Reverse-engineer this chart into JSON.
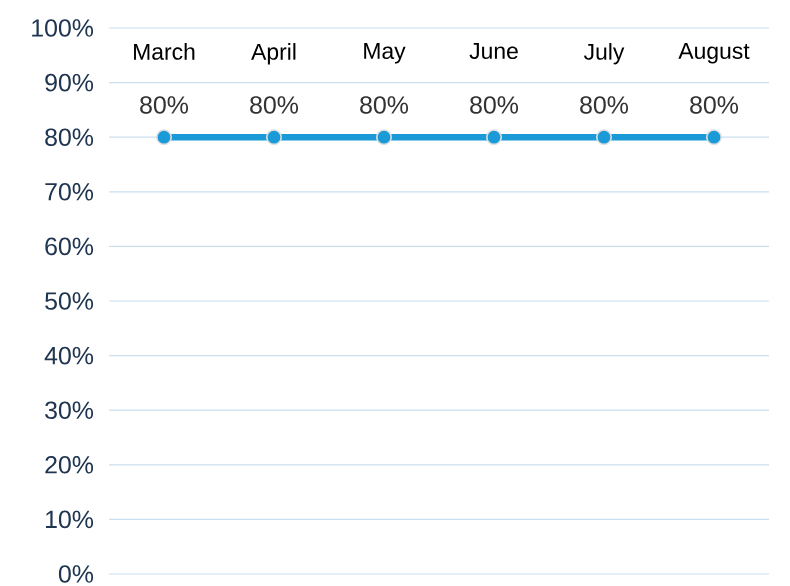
{
  "chart_data": {
    "type": "line",
    "categories": [
      "March",
      "April",
      "May",
      "June",
      "July",
      "August"
    ],
    "series": [
      {
        "color": "#1a9ad6",
        "values": [
          80,
          80,
          80,
          80,
          80,
          80
        ],
        "value_labels": [
          "80%",
          "80%",
          "80%",
          "80%",
          "80%",
          "80%"
        ]
      }
    ],
    "ylim": [
      0,
      100
    ],
    "yticks": [
      {
        "value": 0,
        "label": "0%"
      },
      {
        "value": 10,
        "label": "10%"
      },
      {
        "value": 20,
        "label": "20%"
      },
      {
        "value": 30,
        "label": "30%"
      },
      {
        "value": 40,
        "label": "40%"
      },
      {
        "value": 50,
        "label": "50%"
      },
      {
        "value": 60,
        "label": "60%"
      },
      {
        "value": 70,
        "label": "70%"
      },
      {
        "value": 80,
        "label": "80%"
      },
      {
        "value": 90,
        "label": "90%"
      },
      {
        "value": 100,
        "label": "100%"
      }
    ],
    "grid": "y",
    "marker": "circle",
    "line_style": "solid"
  }
}
